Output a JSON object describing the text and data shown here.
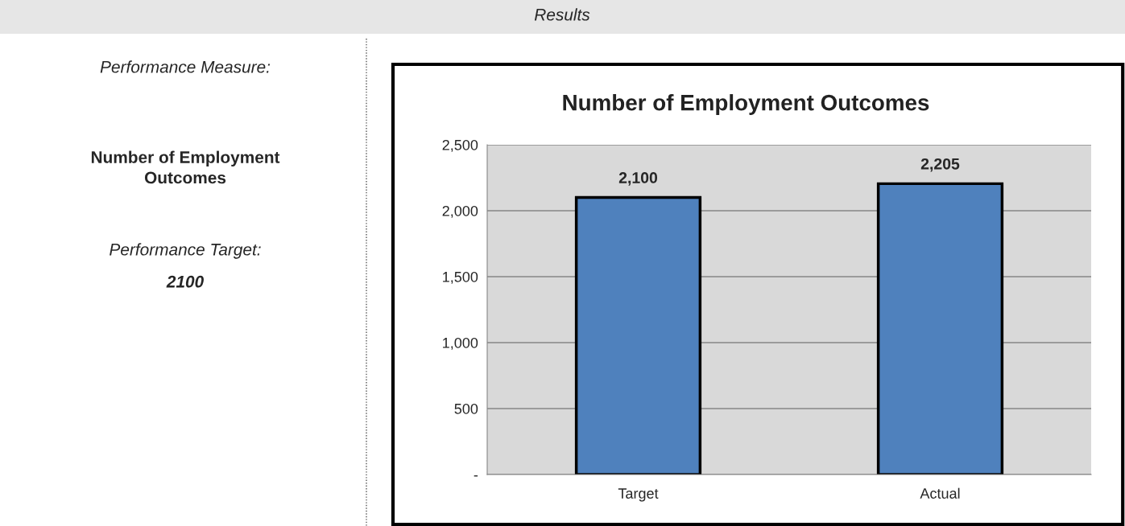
{
  "chart_data": {
    "type": "bar",
    "title": "Number of Employment Outcomes",
    "categories": [
      "Target",
      "Actual"
    ],
    "values": [
      2100,
      2205
    ],
    "value_labels": [
      "2,100",
      "2,205"
    ],
    "color": "#4f81bd",
    "ylim": [
      0,
      2500
    ],
    "yticks": [
      {
        "value": 0,
        "label": "-"
      },
      {
        "value": 500,
        "label": "500"
      },
      {
        "value": 1000,
        "label": "1,000"
      },
      {
        "value": 1500,
        "label": "1,500"
      },
      {
        "value": 2000,
        "label": "2,000"
      },
      {
        "value": 2500,
        "label": "2,500"
      }
    ],
    "grid": "y",
    "legend": false,
    "annotations": [
      "Results",
      "Performance Measure:",
      "Number of Employment Outcomes",
      "Performance Target:",
      "2100"
    ]
  }
}
